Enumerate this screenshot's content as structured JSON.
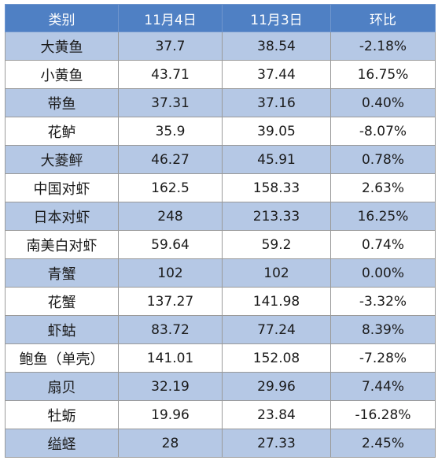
{
  "table": {
    "headers": [
      "类别",
      "11月4日",
      "11月3日",
      "环比"
    ],
    "rows": [
      [
        "大黄鱼",
        "37.7",
        "38.54",
        "-2.18%"
      ],
      [
        "小黄鱼",
        "43.71",
        "37.44",
        "16.75%"
      ],
      [
        "带鱼",
        "37.31",
        "37.16",
        "0.40%"
      ],
      [
        "花鲈",
        "35.9",
        "39.05",
        "-8.07%"
      ],
      [
        "大菱鲆",
        "46.27",
        "45.91",
        "0.78%"
      ],
      [
        "中国对虾",
        "162.5",
        "158.33",
        "2.63%"
      ],
      [
        "日本对虾",
        "248",
        "213.33",
        "16.25%"
      ],
      [
        "南美白对虾",
        "59.64",
        "59.2",
        "0.74%"
      ],
      [
        "青蟹",
        "102",
        "102",
        "0.00%"
      ],
      [
        "花蟹",
        "137.27",
        "141.98",
        "-3.32%"
      ],
      [
        "虾蛄",
        "83.72",
        "77.24",
        "8.39%"
      ],
      [
        "鲍鱼（单壳）",
        "141.01",
        "152.08",
        "-7.28%"
      ],
      [
        "扇贝",
        "32.19",
        "29.96",
        "7.44%"
      ],
      [
        "牡蛎",
        "19.96",
        "23.84",
        "-16.28%"
      ],
      [
        "缢蛏",
        "28",
        "27.33",
        "2.45%"
      ]
    ]
  },
  "colors": {
    "header_background": "#4f80c4",
    "header_text": "#ffffff",
    "band_row": "#b5c8e5",
    "plain_row": "#ffffff",
    "grid": "#9a9a9a"
  }
}
